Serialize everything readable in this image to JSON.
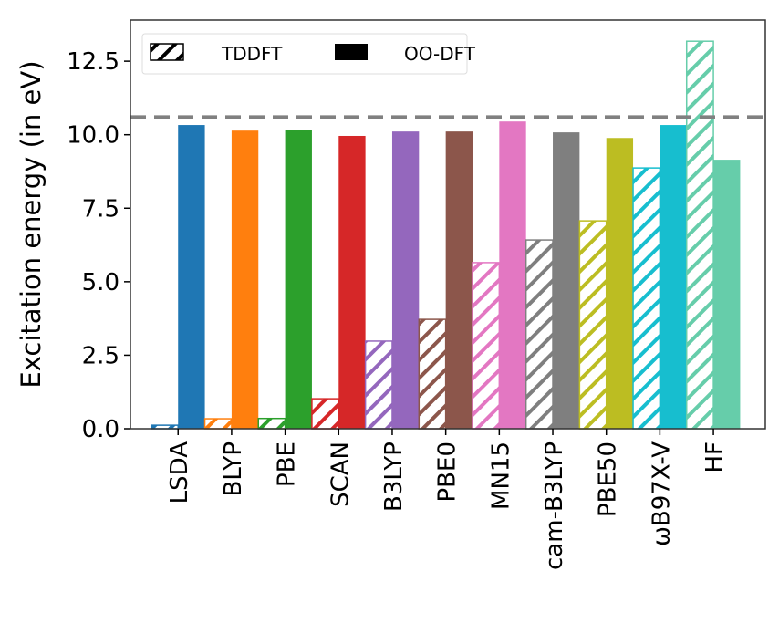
{
  "chart_data": {
    "type": "bar",
    "title": "",
    "xlabel": "",
    "ylabel": "Excitation energy (in eV)",
    "ylim": [
      0,
      13.9
    ],
    "yticks": [
      "0.0",
      "2.5",
      "5.0",
      "7.5",
      "10.0",
      "12.5"
    ],
    "ytick_values": [
      0,
      2.5,
      5.0,
      7.5,
      10.0,
      12.5
    ],
    "categories": [
      "LSDA",
      "BLYP",
      "PBE",
      "SCAN",
      "B3LYP",
      "PBE0",
      "MN15",
      "cam-B3LYP",
      "PBE50",
      "ωB97X-V",
      "HF"
    ],
    "colors": [
      "#1f77b4",
      "#ff7f0e",
      "#2ca02c",
      "#d62728",
      "#9467bd",
      "#8c564b",
      "#e377c2",
      "#7f7f7f",
      "#bcbd22",
      "#17becf",
      "#66cdaa"
    ],
    "series": [
      {
        "name": "TDDFT",
        "style": "hatched",
        "values": [
          0.12,
          0.34,
          0.35,
          1.02,
          2.98,
          3.72,
          5.65,
          6.42,
          7.07,
          8.87,
          13.18
        ]
      },
      {
        "name": "OO-DFT",
        "style": "solid",
        "values": [
          10.33,
          10.14,
          10.17,
          9.96,
          10.11,
          10.11,
          10.45,
          10.08,
          9.89,
          10.33,
          9.15
        ]
      }
    ],
    "reference_line": {
      "value": 10.6,
      "style": "dashed",
      "color": "#808080"
    },
    "legend": {
      "placement": "top-left",
      "entries": [
        "TDDFT",
        "OO-DFT"
      ]
    },
    "grid": false
  }
}
